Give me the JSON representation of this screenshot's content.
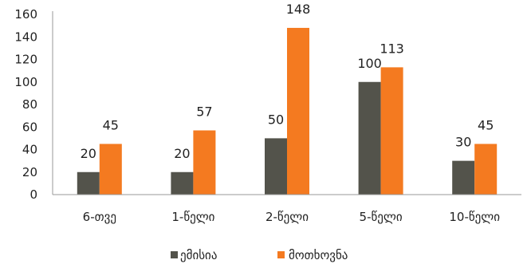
{
  "chart_data": {
    "type": "bar",
    "categories": [
      "6-თვე",
      "1-წელი",
      "2-წელი",
      "5-წელი",
      "10-წელი"
    ],
    "series": [
      {
        "name": "ემისია",
        "values": [
          20,
          20,
          50,
          100,
          30
        ],
        "color": "#53534b"
      },
      {
        "name": "მოთხოვნა",
        "values": [
          45,
          57,
          148,
          113,
          45
        ],
        "color": "#f47a20"
      }
    ],
    "yticks": [
      0,
      20,
      40,
      60,
      80,
      100,
      120,
      140,
      160
    ],
    "ylim": [
      0,
      160
    ],
    "legend_position": "bottom",
    "grid": false
  }
}
